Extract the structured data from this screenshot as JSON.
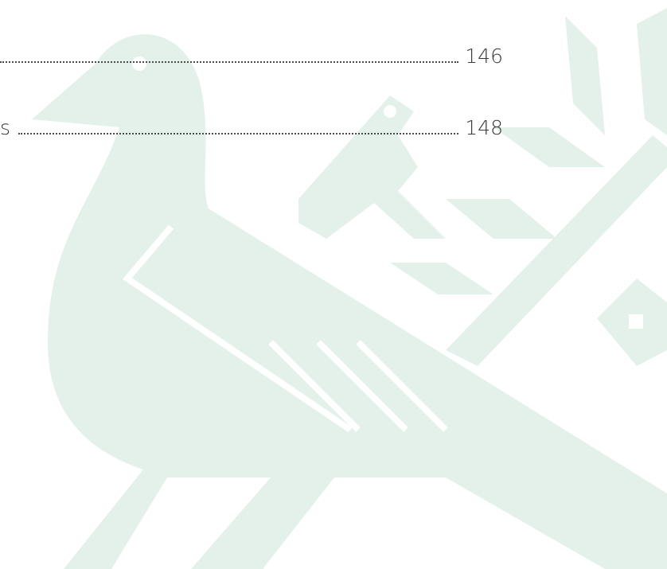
{
  "toc": {
    "entries": [
      {
        "page": "146"
      },
      {
        "title": "s",
        "page": "148"
      }
    ]
  }
}
